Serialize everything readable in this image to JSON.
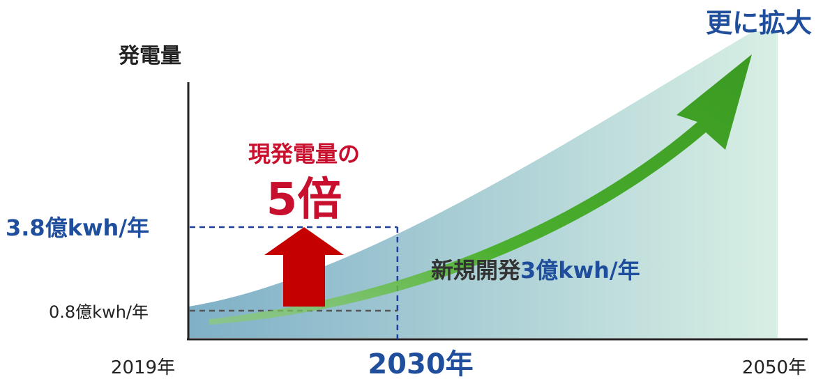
{
  "chart_data": {
    "type": "area",
    "ylabel": "発電量",
    "x_labels": {
      "start": "2019年",
      "mid": "2030年",
      "end": "2050年"
    },
    "x": [
      2019,
      2030,
      2050
    ],
    "values": [
      0.8,
      3.8,
      null
    ],
    "y_labels": {
      "low": "0.8億kwh/年",
      "high": "3.8億kwh/年"
    },
    "annotations": {
      "increase_line1": "現発電量の",
      "increase_line2": "5倍",
      "new_dev_prefix": "新規開発",
      "new_dev_value": "3億kwh/年",
      "future": "更に拡大"
    },
    "colors": {
      "area_left": "#7fb0c7",
      "area_right": "#d8efe4",
      "growth_arrow": "#4caf2e",
      "increase_arrow": "#c40000",
      "accent_red": "#c8102e",
      "accent_blue": "#1f4e9c",
      "guide_blue": "#1f3f99",
      "guide_gray": "#555555",
      "text": "#222222"
    }
  }
}
